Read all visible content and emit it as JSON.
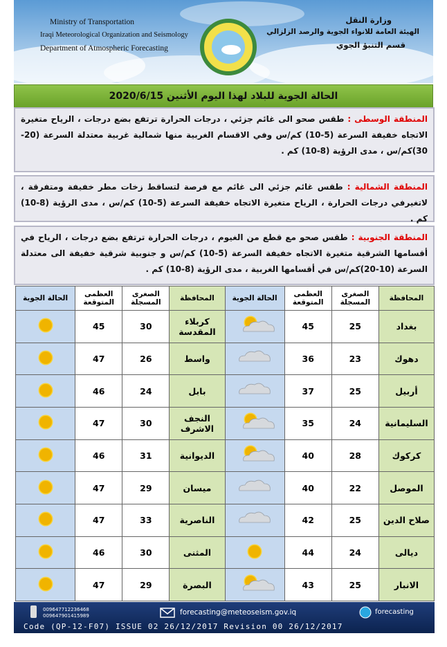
{
  "header": {
    "en": [
      "Ministry of Transportation",
      "Iraqi Meteorological Organization and Seismology",
      "Department of Atmospheric Forecasting"
    ],
    "ar": [
      "وزارة النقل",
      "الهيئة العامة للانواء الجوية والرصد الزلزالي",
      "قسم التنبؤ الجوي"
    ]
  },
  "title": "الحالة الجوية للبلاد لهذا اليوم الأثنين 2020/6/15",
  "regions": [
    {
      "label": "المنطقة الوسطى :",
      "text": "طقس صحو الى غائم جزئي ، درجات الحرارة ترتفع بضع درجات ، الرياح متغيرة الاتجاه خفيفة السرعة (5-10) كم/س وفي الاقسام الغربية منها شمالية غربية معتدلة السرعة (20-30)كم/س ، مدى الرؤية (8-10) كم ."
    },
    {
      "label": "المنطقة الشمالية :",
      "text": "طقس غائم جزئي الى غائم مع فرصة لتساقط زخات مطر خفيفة ومتفرقة ، لاتغيرفي درجات الحرارة ، الرياح متغيرة الاتجاه خفيفة السرعة (5-10) كم/س ، مدى الرؤية (8-10) كم ."
    },
    {
      "label": "المنطقة الجنوبية :",
      "text": "طقس صحو مع قطع من الغيوم ، درجات الحرارة ترتفع بضع درجات ، الرياح في أقسامها الشرقية متغيرة الاتجاه خفيفة السرعة (5-10) كم/س و جنوبية شرقية خفيفة الى معتدلة السرعة (10-20)كم/س في أقسامها الغربية ، مدى الرؤية (8-10) كم ."
    }
  ],
  "table": {
    "headers": [
      "المحافظة",
      "الصغرى المسجلة",
      "العظمى المتوقعة",
      "الحالة الجوية"
    ],
    "rows": [
      [
        [
          "بغداد",
          25,
          45
        ],
        [
          "كربلاء المقدسة",
          30,
          45
        ]
      ],
      [
        [
          "دهوك",
          23,
          36
        ],
        [
          "واسط",
          26,
          47
        ]
      ],
      [
        [
          "أربيل",
          25,
          37
        ],
        [
          "بابل",
          24,
          46
        ]
      ],
      [
        [
          "السليمانية",
          24,
          35
        ],
        [
          "النجف الاشرف",
          30,
          47
        ]
      ],
      [
        [
          "كركوك",
          28,
          40
        ],
        [
          "الديوانية",
          31,
          46
        ]
      ],
      [
        [
          "الموصل",
          22,
          40
        ],
        [
          "ميسان",
          29,
          47
        ]
      ],
      [
        [
          "صلاح الدين",
          25,
          42
        ],
        [
          "الناصرية",
          33,
          47
        ]
      ],
      [
        [
          "ديالى",
          24,
          44
        ],
        [
          "المثنى",
          30,
          46
        ]
      ],
      [
        [
          "الانبار",
          25,
          43
        ],
        [
          "البصرة",
          29,
          47
        ]
      ]
    ]
  },
  "footer": {
    "phones": [
      "009647712236468",
      "009647901415989"
    ],
    "email": "forecasting@meteoseism.gov.iq",
    "skype": "forecasting",
    "code": "Code (QP-12-F07) ISSUE 02 26/12/2017 Revision 00 26/12/2017"
  }
}
